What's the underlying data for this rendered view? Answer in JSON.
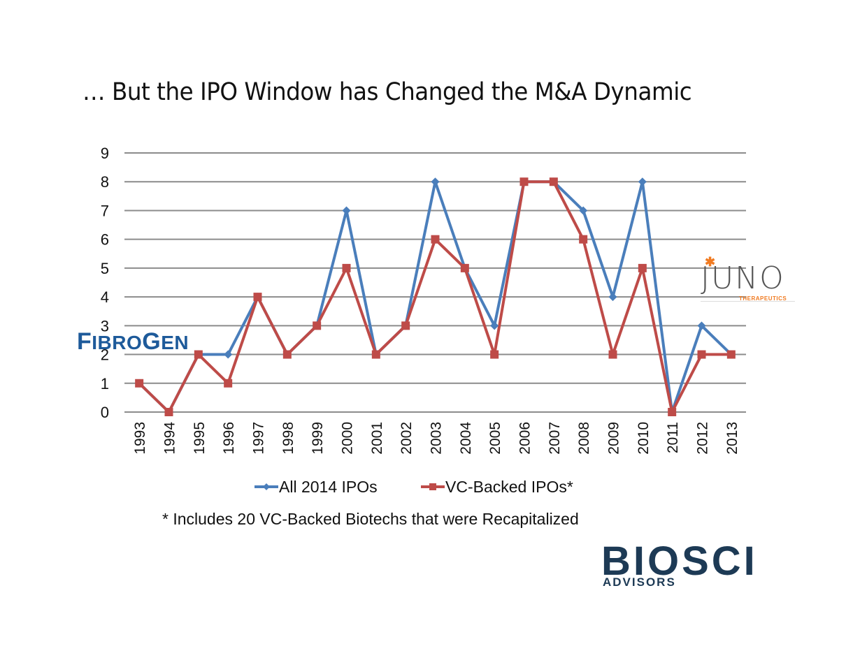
{
  "slide": {
    "title": "… But the IPO Window has Changed the M&A Dynamic",
    "footnote": "* Includes 20 VC-Backed Biotechs that were Recapitalized"
  },
  "logos": {
    "fibrogen": {
      "first": "F",
      "part1": "IBRO",
      "g": "G",
      "part2": "EN",
      "color": "#1d5a9a"
    },
    "juno": {
      "star": "✱",
      "word": "JUNO",
      "sub": "THERAPEUTICS",
      "accent": "#f07b22"
    },
    "biosci": {
      "word": "BIOSCI",
      "sub": "ADVISORS",
      "color": "#1d3a55",
      "accent": "#2bb89a"
    }
  },
  "chart_data": {
    "type": "line",
    "title": "",
    "xlabel": "",
    "ylabel": "",
    "ylim": [
      0,
      9
    ],
    "yticks": [
      0,
      1,
      2,
      3,
      4,
      5,
      6,
      7,
      8,
      9
    ],
    "grid": true,
    "legend": "bottom",
    "categories": [
      "1993",
      "1994",
      "1995",
      "1996",
      "1997",
      "1998",
      "1999",
      "2000",
      "2001",
      "2002",
      "2003",
      "2004",
      "2005",
      "2006",
      "2007",
      "2008",
      "2009",
      "2010",
      "2011",
      "2012",
      "2013"
    ],
    "series": [
      {
        "name": "All 2014 IPOs",
        "color": "#4a7ebb",
        "marker": "diamond",
        "values": [
          1,
          0,
          2,
          2,
          4,
          2,
          3,
          7,
          2,
          3,
          8,
          5,
          3,
          8,
          8,
          7,
          4,
          8,
          0,
          3,
          2
        ]
      },
      {
        "name": "VC-Backed IPOs*",
        "color": "#be4b48",
        "marker": "square",
        "values": [
          1,
          0,
          2,
          1,
          4,
          2,
          3,
          5,
          2,
          3,
          6,
          5,
          2,
          8,
          8,
          6,
          2,
          5,
          0,
          2,
          2
        ]
      }
    ]
  }
}
